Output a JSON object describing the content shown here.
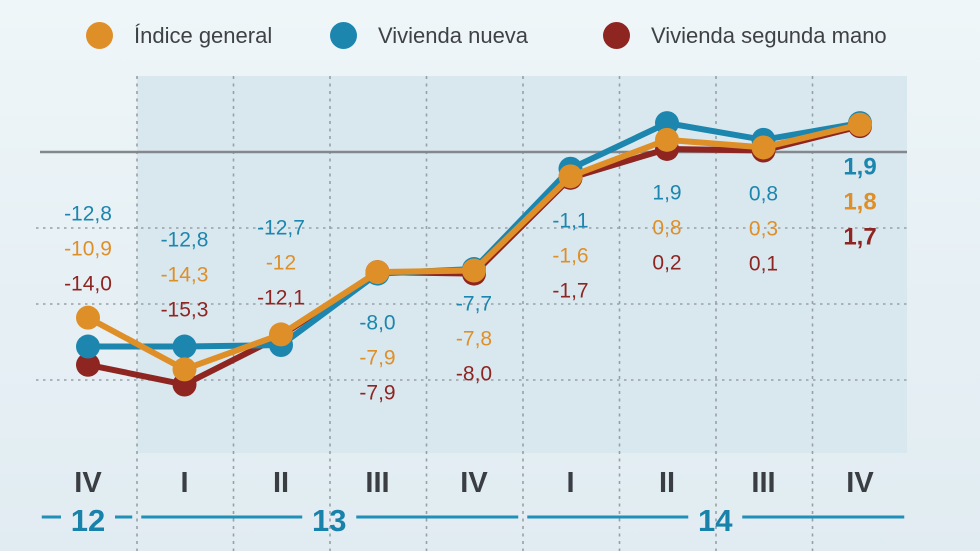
{
  "legend": {
    "items": [
      {
        "label": "Índice general",
        "color": "#df8f28"
      },
      {
        "label": "Vivienda nueva",
        "color": "#1c86ae"
      },
      {
        "label": "Vivienda segunda mano",
        "color": "#8e2521"
      }
    ]
  },
  "chart_data": {
    "type": "line",
    "x_categories": [
      "IV",
      "I",
      "II",
      "III",
      "IV",
      "I",
      "II",
      "III",
      "IV"
    ],
    "year_groups": [
      {
        "label": "12",
        "from": 0,
        "to": 0
      },
      {
        "label": "13",
        "from": 1,
        "to": 4
      },
      {
        "label": "14",
        "from": 5,
        "to": 8
      }
    ],
    "ylim": [
      -20,
      5
    ],
    "gridline_values": [
      -5,
      -10,
      -15
    ],
    "zero_line": true,
    "grid": "dashed",
    "legend_position": "top",
    "series": [
      {
        "name": "Índice general",
        "color": "#df8f28",
        "values": [
          -10.9,
          -14.3,
          -12,
          -7.9,
          -7.8,
          -1.6,
          0.8,
          0.3,
          1.8
        ],
        "labels": [
          "-10,9",
          "-14,3",
          "-12",
          "-7,9",
          "-7,8",
          "-1,6",
          "0,8",
          "0,3",
          "1,8"
        ]
      },
      {
        "name": "Vivienda nueva",
        "color": "#1c86ae",
        "values": [
          -12.8,
          -12.8,
          -12.7,
          -8,
          -7.7,
          -1.1,
          1.9,
          0.8,
          1.9
        ],
        "labels": [
          "-12,8",
          "-12,8",
          "-12,7",
          "-8,0",
          "-7,7",
          "-1,1",
          "1,9",
          "0,8",
          "1,9"
        ]
      },
      {
        "name": "Vivienda segunda mano",
        "color": "#8e2521",
        "values": [
          -14,
          -15.3,
          -12.1,
          -7.9,
          -8,
          -1.7,
          0.2,
          0.1,
          1.7
        ],
        "labels": [
          "-14,0",
          "-15,3",
          "-12,1",
          "-7,9",
          "-8,0",
          "-1,7",
          "0,2",
          "0,1",
          "1,7"
        ]
      }
    ],
    "grid_color": "#97a0a6",
    "zero_line_color": "#84888c",
    "year_axis_color": "#2190b8",
    "year_text_color": "#1982ab",
    "x_tick_color": "#3a3e43"
  }
}
